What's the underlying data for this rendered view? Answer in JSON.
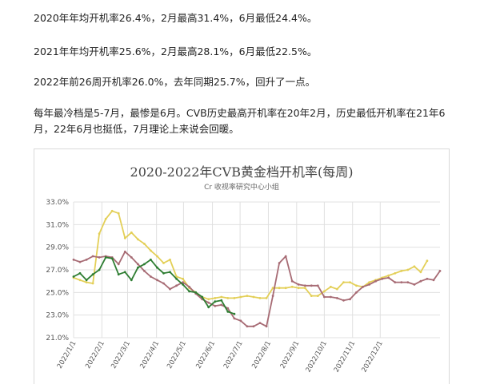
{
  "paragraphs": [
    "2020年年均开机率26.4%，2月最高31.4%，6月最低24.4%。",
    "2021年年均开机率25.6%，2月最高28.1%，6月最低22.5%。",
    "2022年前26周开机率26.0%，去年同期25.7%，回升了一点。",
    "每年最冷档是5-7月，最惨是6月。CVB历史最高开机率在20年2月，历史最低开机率在21年6月，22年6月也挺低，7月理论上来说会回暖。"
  ],
  "colors": {
    "series_2020": "#e3cf57",
    "series_2021": "#a76b74",
    "series_2022": "#2e7d32",
    "grid": "#e0e0e0",
    "axis_text": "#555555"
  },
  "chart_data": {
    "type": "line",
    "title": "2020-2022年CVB黄金档开机率(每周)",
    "subtitle": "Cr 收视率研究中心小组",
    "y_ticks": [
      "33.0%",
      "31.0%",
      "29.0%",
      "27.0%",
      "25.0%",
      "23.0%",
      "21.0%"
    ],
    "ylim": [
      21,
      33
    ],
    "x_ticks": [
      "2022/1/1",
      "2022/2/1",
      "2022/3/1",
      "2022/4/1",
      "2022/5/1",
      "2022/6/1",
      "2022/7/1",
      "2022/8/1",
      "2022/9/1",
      "2022/10/1",
      "2022/11/1",
      "2022/12/1"
    ],
    "x_tick_weeks": [
      0,
      4.4,
      8.4,
      12.9,
      17.1,
      21.6,
      25.9,
      30.3,
      34.7,
      39.0,
      43.4,
      47.7
    ],
    "series": [
      {
        "color_key": "series_2020",
        "values": [
          26.3,
          26.1,
          25.9,
          25.8,
          30.2,
          31.5,
          32.2,
          32.0,
          29.8,
          30.3,
          29.7,
          29.3,
          28.7,
          28.2,
          27.6,
          27.9,
          26.4,
          26.2,
          25.4,
          25.0,
          24.6,
          24.4,
          24.5,
          24.6,
          24.5,
          24.5,
          24.6,
          24.7,
          24.6,
          24.5,
          24.5,
          25.4,
          25.4,
          25.4,
          25.5,
          25.4,
          25.4,
          24.7,
          24.7,
          25.1,
          25.5,
          25.3,
          25.9,
          25.9,
          25.6,
          25.5,
          25.9,
          26.1,
          26.3,
          26.5,
          26.7,
          26.9,
          27.0,
          27.3,
          26.8,
          27.8
        ]
      },
      {
        "color_key": "series_2021",
        "values": [
          27.9,
          27.7,
          27.9,
          28.2,
          28.1,
          28.2,
          28.1,
          27.5,
          28.6,
          28.1,
          27.5,
          26.9,
          26.4,
          26.1,
          25.8,
          25.3,
          25.6,
          25.9,
          25.5,
          24.9,
          24.4,
          24.1,
          23.8,
          23.9,
          23.6,
          22.7,
          22.5,
          22.0,
          22.0,
          22.3,
          22.0,
          24.7,
          27.6,
          28.2,
          26.0,
          25.7,
          25.6,
          25.6,
          25.6,
          24.6,
          24.6,
          24.5,
          24.3,
          24.4,
          25.0,
          25.5,
          25.7,
          26.0,
          26.2,
          26.3,
          25.9,
          25.9,
          25.9,
          25.7,
          26.0,
          26.2,
          26.1,
          26.9
        ]
      },
      {
        "color_key": "series_2022",
        "values": [
          26.4,
          26.7,
          26.1,
          26.6,
          27.0,
          28.1,
          28.0,
          26.6,
          26.8,
          26.1,
          27.2,
          27.5,
          27.9,
          27.2,
          26.7,
          26.8,
          26.2,
          25.7,
          25.1,
          25.0,
          24.6,
          23.7,
          24.2,
          24.3,
          23.3,
          23.1
        ]
      }
    ]
  }
}
